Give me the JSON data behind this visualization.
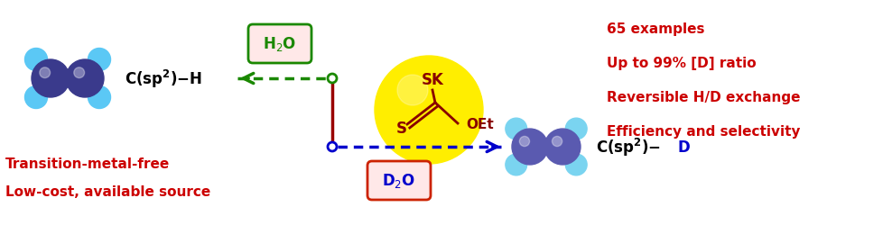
{
  "bg_color": "#ffffff",
  "inner_color_left": "#3a3a8c",
  "outer_color_left": "#5bc8f5",
  "inner_color_right": "#5a5ab0",
  "outer_color_right": "#7ad4f0",
  "xanthate_ball_color": "#ffee00",
  "xanthate_text_color": "#880000",
  "green_color": "#1a8800",
  "blue_color": "#0000cc",
  "dark_red_line": "#990000",
  "box_red_border": "#cc2200",
  "red_text": "#cc0000",
  "black_text": "#000000",
  "left_label_1": "Transition-metal-free",
  "left_label_2": "Low-cost, available source",
  "right_label_1": "65 examples",
  "right_label_2": "Up to 99% [D] ratio",
  "right_label_3": "Reversible H/D exchange",
  "right_label_4": "Efficiency and selectivity"
}
